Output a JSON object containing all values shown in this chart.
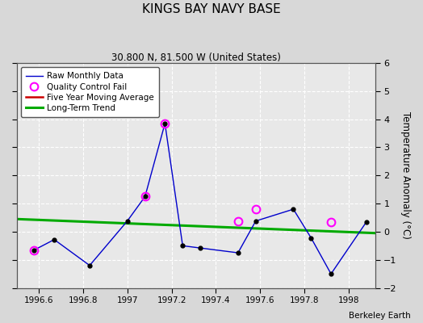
{
  "title": "KINGS BAY NAVY BASE",
  "subtitle": "30.800 N, 81.500 W (United States)",
  "ylabel": "Temperature Anomaly (°C)",
  "credit": "Berkeley Earth",
  "xlim": [
    1996.5,
    1998.12
  ],
  "ylim": [
    -2,
    6
  ],
  "yticks": [
    -2,
    -1,
    0,
    1,
    2,
    3,
    4,
    5,
    6
  ],
  "xticks": [
    1996.6,
    1996.8,
    1997.0,
    1997.2,
    1997.4,
    1997.6,
    1997.8,
    1998.0
  ],
  "raw_x": [
    1996.58,
    1996.67,
    1996.83,
    1997.0,
    1997.08,
    1997.17,
    1997.25,
    1997.33,
    1997.5,
    1997.58,
    1997.75,
    1997.83,
    1997.92,
    1998.08
  ],
  "raw_y": [
    -0.65,
    -0.28,
    -1.2,
    0.38,
    1.25,
    3.85,
    -0.5,
    -0.58,
    -0.75,
    0.38,
    0.8,
    -0.22,
    -1.5,
    0.35
  ],
  "qc_fail_x": [
    1996.58,
    1997.08,
    1997.17,
    1997.5,
    1997.58,
    1997.92
  ],
  "qc_fail_y": [
    -0.65,
    1.25,
    3.85,
    0.38,
    0.8,
    0.35
  ],
  "trend_x": [
    1996.5,
    1998.12
  ],
  "trend_y": [
    0.45,
    -0.05
  ],
  "raw_color": "#0000cc",
  "raw_marker_color": "#000000",
  "qc_color": "magenta",
  "ma_color": "#cc0000",
  "trend_color": "#00aa00",
  "bg_color": "#d8d8d8",
  "plot_bg_color": "#e8e8e8",
  "grid_color": "#ffffff"
}
